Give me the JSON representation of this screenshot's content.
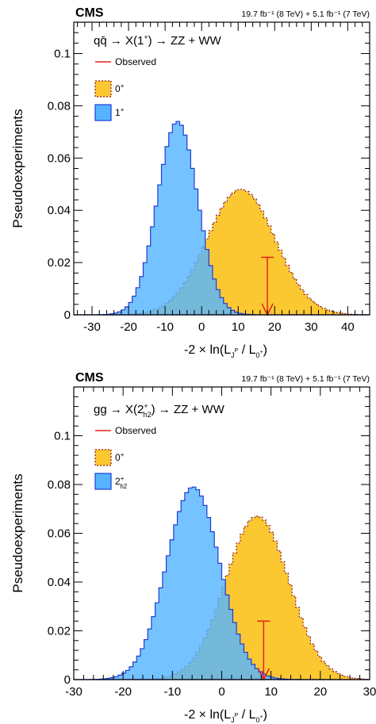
{
  "chart_data": [
    {
      "type": "histogram",
      "experiment": "CMS",
      "lumi": "19.7 fb⁻¹ (8 TeV) + 5.1 fb⁻¹ (7 TeV)",
      "title": "qq̄ → X(1⁺) → ZZ + WW",
      "xlabel": "-2 × ln(L_J^P / L_0⁺)",
      "ylabel": "Pseudoexperiments",
      "xlim": [
        -35,
        46
      ],
      "ylim": [
        0,
        0.112
      ],
      "xticks": [
        "-30",
        "-20",
        "-10",
        "0",
        "10",
        "20",
        "30",
        "40"
      ],
      "yticks": [
        "0",
        "0.02",
        "0.04",
        "0.06",
        "0.08",
        "0.1"
      ],
      "bin_width": 1.0,
      "observed": {
        "label": "Observed",
        "x": 18.0,
        "height": 0.022,
        "color": "#e8201c"
      },
      "series": [
        {
          "name": "0⁺",
          "mean": 10.8,
          "sigma": 9.3,
          "peak": 0.048,
          "color": "#fbc832",
          "edge": "#8b1a1a",
          "style": "dashed"
        },
        {
          "name": "1⁺",
          "mean": -6.6,
          "sigma": 5.5,
          "peak": 0.074,
          "color": "#55b4ff",
          "edge": "#1f3cd6",
          "style": "solid"
        }
      ]
    },
    {
      "type": "histogram",
      "experiment": "CMS",
      "lumi": "19.7 fb⁻¹ (8 TeV) + 5.1 fb⁻¹ (7 TeV)",
      "title": "gg → X(2⁺h2) → ZZ + WW",
      "xlabel": "-2 × ln(L_J^P / L_0⁺)",
      "ylabel": "Pseudoexperiments",
      "xlim": [
        -30,
        30
      ],
      "ylim": [
        0,
        0.12
      ],
      "xticks": [
        "-30",
        "-20",
        "-10",
        "0",
        "10",
        "20",
        "30"
      ],
      "yticks": [
        "0",
        "0.02",
        "0.04",
        "0.06",
        "0.08",
        "0.1"
      ],
      "bin_width": 0.75,
      "observed": {
        "label": "Observed",
        "x": 8.5,
        "height": 0.024,
        "color": "#e8201c"
      },
      "series": [
        {
          "name": "0⁺",
          "mean": 7.2,
          "sigma": 6.4,
          "peak": 0.067,
          "color": "#fbc832",
          "edge": "#8b1a1a",
          "style": "dashed"
        },
        {
          "name": "2⁺h2",
          "mean": -5.8,
          "sigma": 5.4,
          "peak": 0.079,
          "color": "#55b4ff",
          "edge": "#1f3cd6",
          "style": "solid"
        }
      ]
    }
  ]
}
